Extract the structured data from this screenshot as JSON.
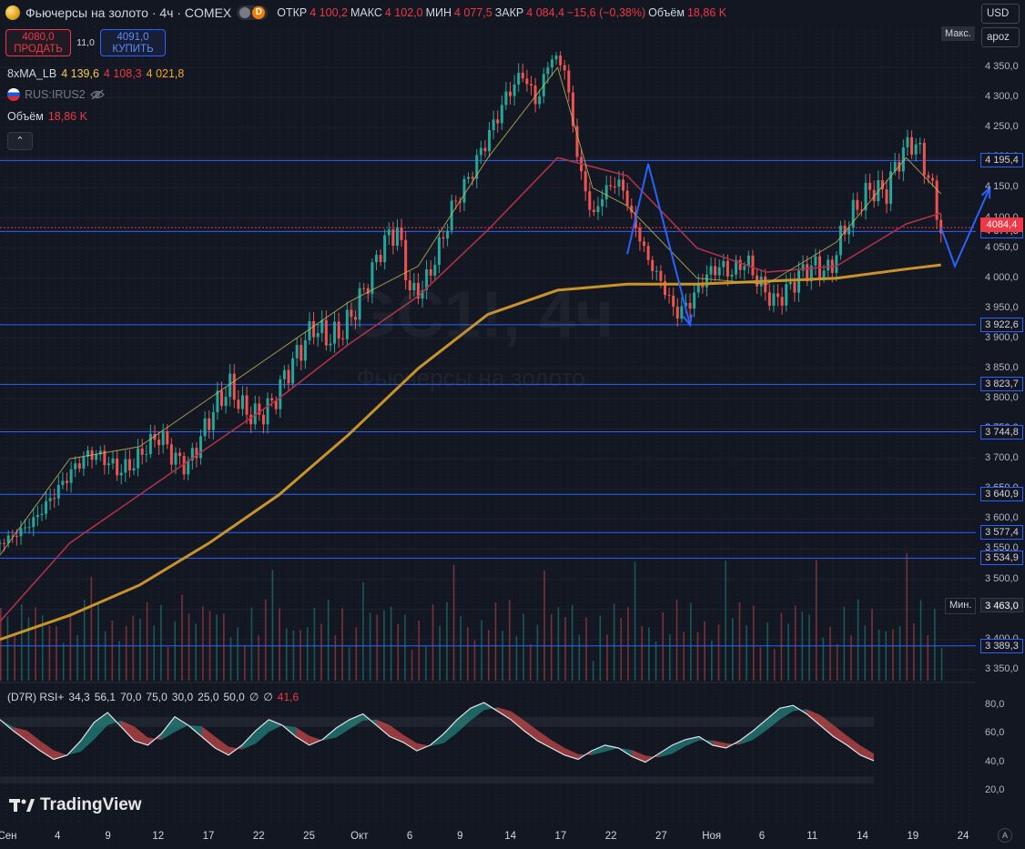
{
  "header": {
    "symbol_title": "Фьючерсы на золото · 4ч · COMEX",
    "ohlc": [
      {
        "label": "ОТКР",
        "value": "4 100,2"
      },
      {
        "label": "МАКС",
        "value": "4 102,0"
      },
      {
        "label": "МИН",
        "value": "4 077,5"
      },
      {
        "label": "ЗАКР",
        "value": "4 084,4"
      }
    ],
    "change": "−15,6 (−0,38%)",
    "volume_label": "Объём",
    "volume_value": "18,86 K",
    "badge_letter": "D"
  },
  "trade": {
    "sell_price": "4080,0",
    "sell_label": "ПРОДАТЬ",
    "spread": "11,0",
    "buy_price": "4091,0",
    "buy_label": "КУПИТЬ"
  },
  "indicators": {
    "ma_name": "8xMA_LB",
    "ma_values": [
      "4 139,6",
      "4 108,3",
      "4 021,8"
    ],
    "ma_colors": [
      "#f7c948",
      "#f23645",
      "#f5a623"
    ],
    "rus_label": "RUS:IRUS2",
    "vol_label": "Объём",
    "vol_value": "18,86 K",
    "collapse_glyph": "⌃"
  },
  "scale": {
    "currency": "USD",
    "mode": "apoz",
    "max_tag": "Макс.",
    "min_tag": "Мин.",
    "min_value": "3 463,0",
    "current_price": "4084,4",
    "auto_label": "A"
  },
  "watermark": {
    "symbol": "GC1!, 4ч",
    "name": "Фьючерсы на золото"
  },
  "rsi": {
    "title": "(D7R) RSI+",
    "params": [
      "34,3",
      "56,1",
      "70,0",
      "75,0",
      "30,0",
      "25,0",
      "50,0",
      "∅",
      "∅"
    ],
    "last": "41,6",
    "ticks": [
      "80,0",
      "60,0",
      "40,0",
      "20,0"
    ]
  },
  "brand": "TradingView",
  "chart_data": {
    "type": "candlestick",
    "title": "Фьючерсы на золото · 4ч · COMEX",
    "ylim": [
      3330,
      4400
    ],
    "y_ticks": [
      3350,
      3400,
      3450,
      3500,
      3550,
      3600,
      3650,
      3700,
      3750,
      3800,
      3850,
      3900,
      3950,
      4000,
      4050,
      4100,
      4150,
      4200,
      4250,
      4300,
      4350
    ],
    "y_tick_labels": [
      "3 350,0",
      "3 400,0",
      "3 450,0",
      "3 500,0",
      "3 550,0",
      "3 600,0",
      "3 650,0",
      "3 700,0",
      "3 750,0",
      "3 800,0",
      "3 850,0",
      "3 900,0",
      "3 950,0",
      "4 000,0",
      "4 050,0",
      "4 100,0",
      "4 150,0",
      "4 200,0",
      "4 250,0",
      "4 300,0",
      "4 350,0"
    ],
    "x_ticks": [
      "Сен",
      "4",
      "9",
      "12",
      "17",
      "22",
      "25",
      "Окт",
      "6",
      "9",
      "14",
      "17",
      "22",
      "27",
      "Ноя",
      "6",
      "11",
      "14",
      "19",
      "24"
    ],
    "horizontal_levels": [
      {
        "value": 4195.4,
        "label": "4 195,4"
      },
      {
        "value": 4077.5,
        "label": "4 077,5"
      },
      {
        "value": 3922.6,
        "label": "3 922,6"
      },
      {
        "value": 3823.7,
        "label": "3 823,7"
      },
      {
        "value": 3744.8,
        "label": "3 744,8"
      },
      {
        "value": 3640.9,
        "label": "3 640,9"
      },
      {
        "value": 3577.4,
        "label": "3 577,4"
      },
      {
        "value": 3534.9,
        "label": "3 534,9"
      },
      {
        "value": 3389.3,
        "label": "3 389,3"
      }
    ],
    "price_path": [
      [
        0,
        3560
      ],
      [
        3,
        3580
      ],
      [
        5,
        3600
      ],
      [
        7,
        3630
      ],
      [
        9,
        3660
      ],
      [
        11,
        3690
      ],
      [
        13,
        3710
      ],
      [
        15,
        3700
      ],
      [
        17,
        3680
      ],
      [
        19,
        3690
      ],
      [
        21,
        3720
      ],
      [
        23,
        3740
      ],
      [
        25,
        3700
      ],
      [
        27,
        3690
      ],
      [
        29,
        3740
      ],
      [
        31,
        3790
      ],
      [
        33,
        3820
      ],
      [
        35,
        3780
      ],
      [
        37,
        3770
      ],
      [
        39,
        3790
      ],
      [
        41,
        3840
      ],
      [
        43,
        3880
      ],
      [
        45,
        3920
      ],
      [
        47,
        3900
      ],
      [
        49,
        3910
      ],
      [
        51,
        3950
      ],
      [
        53,
        4000
      ],
      [
        55,
        4060
      ],
      [
        57,
        4080
      ],
      [
        59,
        3970
      ],
      [
        61,
        3990
      ],
      [
        63,
        4050
      ],
      [
        65,
        4120
      ],
      [
        67,
        4160
      ],
      [
        69,
        4210
      ],
      [
        71,
        4260
      ],
      [
        73,
        4310
      ],
      [
        75,
        4340
      ],
      [
        77,
        4290
      ],
      [
        79,
        4370
      ],
      [
        81,
        4350
      ],
      [
        83,
        4190
      ],
      [
        85,
        4100
      ],
      [
        87,
        4150
      ],
      [
        89,
        4160
      ],
      [
        91,
        4090
      ],
      [
        93,
        4030
      ],
      [
        95,
        3990
      ],
      [
        97,
        3940
      ],
      [
        99,
        3960
      ],
      [
        101,
        4000
      ],
      [
        103,
        4020
      ],
      [
        105,
        4010
      ],
      [
        107,
        4030
      ],
      [
        109,
        3990
      ],
      [
        111,
        3960
      ],
      [
        113,
        3980
      ],
      [
        115,
        4010
      ],
      [
        117,
        4020
      ],
      [
        119,
        4010
      ],
      [
        121,
        4080
      ],
      [
        123,
        4120
      ],
      [
        125,
        4150
      ],
      [
        127,
        4140
      ],
      [
        129,
        4200
      ],
      [
        131,
        4230
      ],
      [
        133,
        4180
      ],
      [
        134,
        4130
      ],
      [
        135,
        4084
      ]
    ],
    "ma_slow_path": [
      [
        0,
        3400
      ],
      [
        10,
        3440
      ],
      [
        20,
        3490
      ],
      [
        30,
        3560
      ],
      [
        40,
        3640
      ],
      [
        50,
        3740
      ],
      [
        60,
        3850
      ],
      [
        70,
        3940
      ],
      [
        80,
        3980
      ],
      [
        90,
        3990
      ],
      [
        100,
        3990
      ],
      [
        110,
        3995
      ],
      [
        120,
        4000
      ],
      [
        130,
        4015
      ],
      [
        135,
        4022
      ]
    ],
    "ma_mid_path": [
      [
        0,
        3430
      ],
      [
        10,
        3560
      ],
      [
        20,
        3640
      ],
      [
        30,
        3720
      ],
      [
        40,
        3800
      ],
      [
        50,
        3890
      ],
      [
        60,
        3970
      ],
      [
        70,
        4080
      ],
      [
        80,
        4200
      ],
      [
        90,
        4170
      ],
      [
        100,
        4050
      ],
      [
        110,
        4010
      ],
      [
        120,
        4020
      ],
      [
        130,
        4090
      ],
      [
        135,
        4108
      ]
    ],
    "ma_fast_path": [
      [
        0,
        3540
      ],
      [
        10,
        3700
      ],
      [
        20,
        3720
      ],
      [
        30,
        3800
      ],
      [
        40,
        3880
      ],
      [
        50,
        3960
      ],
      [
        60,
        4020
      ],
      [
        70,
        4200
      ],
      [
        80,
        4350
      ],
      [
        85,
        4150
      ],
      [
        90,
        4120
      ],
      [
        100,
        4000
      ],
      [
        110,
        3990
      ],
      [
        120,
        4060
      ],
      [
        130,
        4200
      ],
      [
        135,
        4140
      ]
    ],
    "projection_arrows": [
      [
        [
          90,
          4040
        ],
        [
          93,
          4190
        ],
        [
          99,
          3922
        ]
      ],
      [
        [
          135,
          4084
        ],
        [
          137,
          4020
        ],
        [
          142,
          4150
        ]
      ]
    ],
    "rsi_series": [
      70,
      62,
      55,
      48,
      42,
      45,
      55,
      68,
      75,
      65,
      55,
      52,
      60,
      72,
      66,
      58,
      50,
      45,
      52,
      62,
      70,
      66,
      58,
      52,
      56,
      64,
      70,
      74,
      66,
      58,
      54,
      48,
      52,
      60,
      70,
      78,
      82,
      76,
      70,
      62,
      55,
      50,
      45,
      42,
      48,
      52,
      50,
      44,
      40,
      46,
      52,
      56,
      58,
      52,
      50,
      55,
      62,
      70,
      78,
      80,
      74,
      66,
      58,
      52,
      45,
      41
    ]
  }
}
